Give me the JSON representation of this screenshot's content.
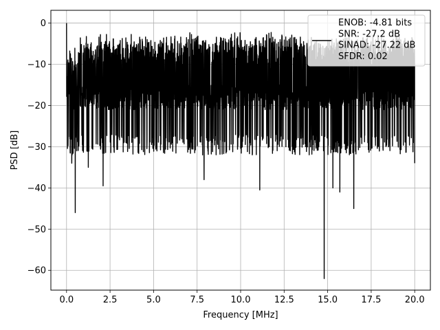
{
  "chart_data": {
    "type": "line",
    "title": "",
    "xlabel": "Frequency [MHz]",
    "ylabel": "PSD [dB]",
    "xlim": [
      -0.9,
      20.9
    ],
    "ylim": [
      -64.8,
      3.1
    ],
    "xticks": [
      0.0,
      2.5,
      5.0,
      7.5,
      10.0,
      12.5,
      15.0,
      17.5,
      20.0
    ],
    "xtick_labels": [
      "0.0",
      "2.5",
      "5.0",
      "7.5",
      "10.0",
      "12.5",
      "15.0",
      "17.5",
      "20.0"
    ],
    "yticks": [
      0,
      -10,
      -20,
      -30,
      -40,
      -50,
      -60
    ],
    "ytick_labels": [
      "0",
      "−10",
      "−20",
      "−30",
      "−40",
      "−50",
      "−60"
    ],
    "grid": true,
    "legend_position": "top-right",
    "series": [
      {
        "name": "ENOB: -4.81 bits\nSNR: -27.2 dB\nSINAD: -27.22 dB\nSFDR: 0.02",
        "legend_lines": [
          "ENOB: -4.81 bits",
          "SNR: -27.2 dB",
          "SINAD: -27.22 dB",
          "SFDR: 0.02"
        ],
        "color": "#000000",
        "x_start": 0.0,
        "x_end": 20.0,
        "description_points": [
          {
            "x": 0.0,
            "y": 0.0
          },
          {
            "x": 0.1,
            "y": -18
          },
          {
            "x": 0.3,
            "y": -34
          },
          {
            "x": 0.5,
            "y": -46
          },
          {
            "x": 1.25,
            "y": -35
          },
          {
            "x": 2.1,
            "y": -39.5
          },
          {
            "x": 7.9,
            "y": -38
          },
          {
            "x": 11.1,
            "y": -40.5
          },
          {
            "x": 14.8,
            "y": -62
          },
          {
            "x": 15.3,
            "y": -40
          },
          {
            "x": 15.7,
            "y": -41
          },
          {
            "x": 16.5,
            "y": -45
          },
          {
            "x": 20.0,
            "y": -34
          }
        ],
        "upper_envelope_db": -4,
        "lower_envelope_db": -27
      }
    ]
  }
}
